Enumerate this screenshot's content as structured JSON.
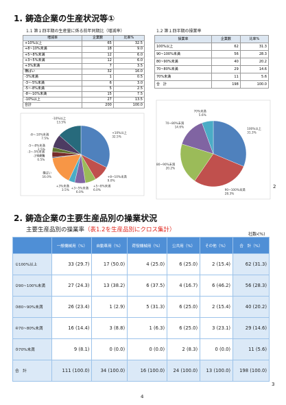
{
  "section_1": {
    "title": "1. 鋳造企業の生産状況等①",
    "subtitle_left": "1.1 第１四半期の生産量に係る前年同期比（増減率）",
    "subtitle_right": "1.2 第１四半期の操業率"
  },
  "table_1": {
    "header": [
      "増減率",
      "企業数",
      "比率%"
    ],
    "rows": [
      [
        "+10%以上",
        "65",
        "32.5"
      ],
      [
        "+8~10%未満",
        "18",
        "9.0"
      ],
      [
        "+5~8%未満",
        "12",
        "6.0"
      ],
      [
        "+3~5%未満",
        "12",
        "6.0"
      ],
      [
        "+3%未満",
        "7",
        "3.5"
      ],
      [
        "横ばい",
        "32",
        "16.0"
      ],
      [
        "-3%未満",
        "1",
        "0.5"
      ],
      [
        "-3~-5%未満",
        "6",
        "3.0"
      ],
      [
        "-5~-8%未満",
        "5",
        "2.5"
      ],
      [
        "-8~-10%未満",
        "15",
        "7.5"
      ],
      [
        "-10%以上",
        "27",
        "13.5"
      ],
      [
        "合計",
        "200",
        "100.0"
      ]
    ]
  },
  "table_2": {
    "header": [
      "操業率",
      "企業数",
      "比率%"
    ],
    "rows": [
      [
        "100%以上",
        "62",
        "31.3"
      ],
      [
        "90~100%未満",
        "56",
        "28.3"
      ],
      [
        "80~90%未満",
        "40",
        "20.2"
      ],
      [
        "70~80%未満",
        "29",
        "14.6"
      ],
      [
        "70%未満",
        "11",
        "5.6"
      ],
      [
        "合　計",
        "198",
        "100.0"
      ]
    ]
  },
  "charts": [
    {
      "type": "pie",
      "values": [
        32.5,
        9.0,
        6.0,
        6.0,
        3.5,
        16.0,
        0.5,
        3.0,
        2.5,
        7.5,
        13.5
      ],
      "value_labels": [
        "32.5%",
        "9.0%",
        "6.0%",
        "6.0%",
        "3.5%",
        "16.0%",
        "0.5%",
        "3.0%",
        "2.5%",
        "7.5%",
        "13.5%"
      ],
      "colors": [
        "#4f81bd",
        "#c0504d",
        "#9bbb59",
        "#8064a2",
        "#4bacc6",
        "#f79646",
        "#2c4d75",
        "#772c2a",
        "#5f7530",
        "#4d3b62",
        "#276a7c"
      ]
    },
    {
      "type": "pie",
      "values": [
        31.3,
        28.3,
        20.2,
        14.6,
        5.6
      ],
      "value_labels": [
        "31.3%",
        "28.3%",
        "20.2%",
        "14.6%",
        "5.6%"
      ],
      "colors": [
        "#4f81bd",
        "#c0504d",
        "#9bbb59",
        "#8064a2",
        "#4bacc6"
      ]
    }
  ],
  "section_2": {
    "title": "2. 鋳造企業の主要生産品別の操業状況",
    "subtitle": "主要生産品別の操業率",
    "subtitle_note": "（表1.2を生産品別にクロス集計）",
    "unit": "社数・(%)"
  },
  "table_3": {
    "header": [
      "",
      "一般機械用（%）",
      "自動車用（%）",
      "荷役機械用（%）",
      "公共用（%）",
      "その他（%）",
      "合　計（%）"
    ],
    "rows": [
      [
        "①100%以上",
        "33 (29.7)",
        "17 (50.0)",
        "4 (25.0)",
        "6 (25.0)",
        "2 (15.4)",
        "62 (31.3)"
      ],
      [
        "②90~100%未満",
        "27 (24.3)",
        "13 (38.2)",
        "6 (37.5)",
        "4 (16.7)",
        "6 (46.2)",
        "56 (28.3)"
      ],
      [
        "③80~90%未満",
        "26 (23.4)",
        "1 (2.9)",
        "5 (31.3)",
        "6 (25.0)",
        "2 (15.4)",
        "40 (20.2)"
      ],
      [
        "④70~80%未満",
        "16 (14.4)",
        "3 (8.8)",
        "1 (6.3)",
        "6 (25.0)",
        "3 (23.1)",
        "29 (14.6)"
      ],
      [
        "⑤70%未満",
        "9 (8.1)",
        "0 (0.0)",
        "0 (0.0)",
        "2 (8.3)",
        "0 (0.0)",
        "11 (5.6)"
      ],
      [
        "合　計",
        "111 (100.0)",
        "34 (100.0)",
        "16 (100.0)",
        "24 (100.0)",
        "13 (100.0)",
        "198 (100.0)"
      ]
    ]
  },
  "page_numbers": [
    "2",
    "3",
    "4"
  ]
}
